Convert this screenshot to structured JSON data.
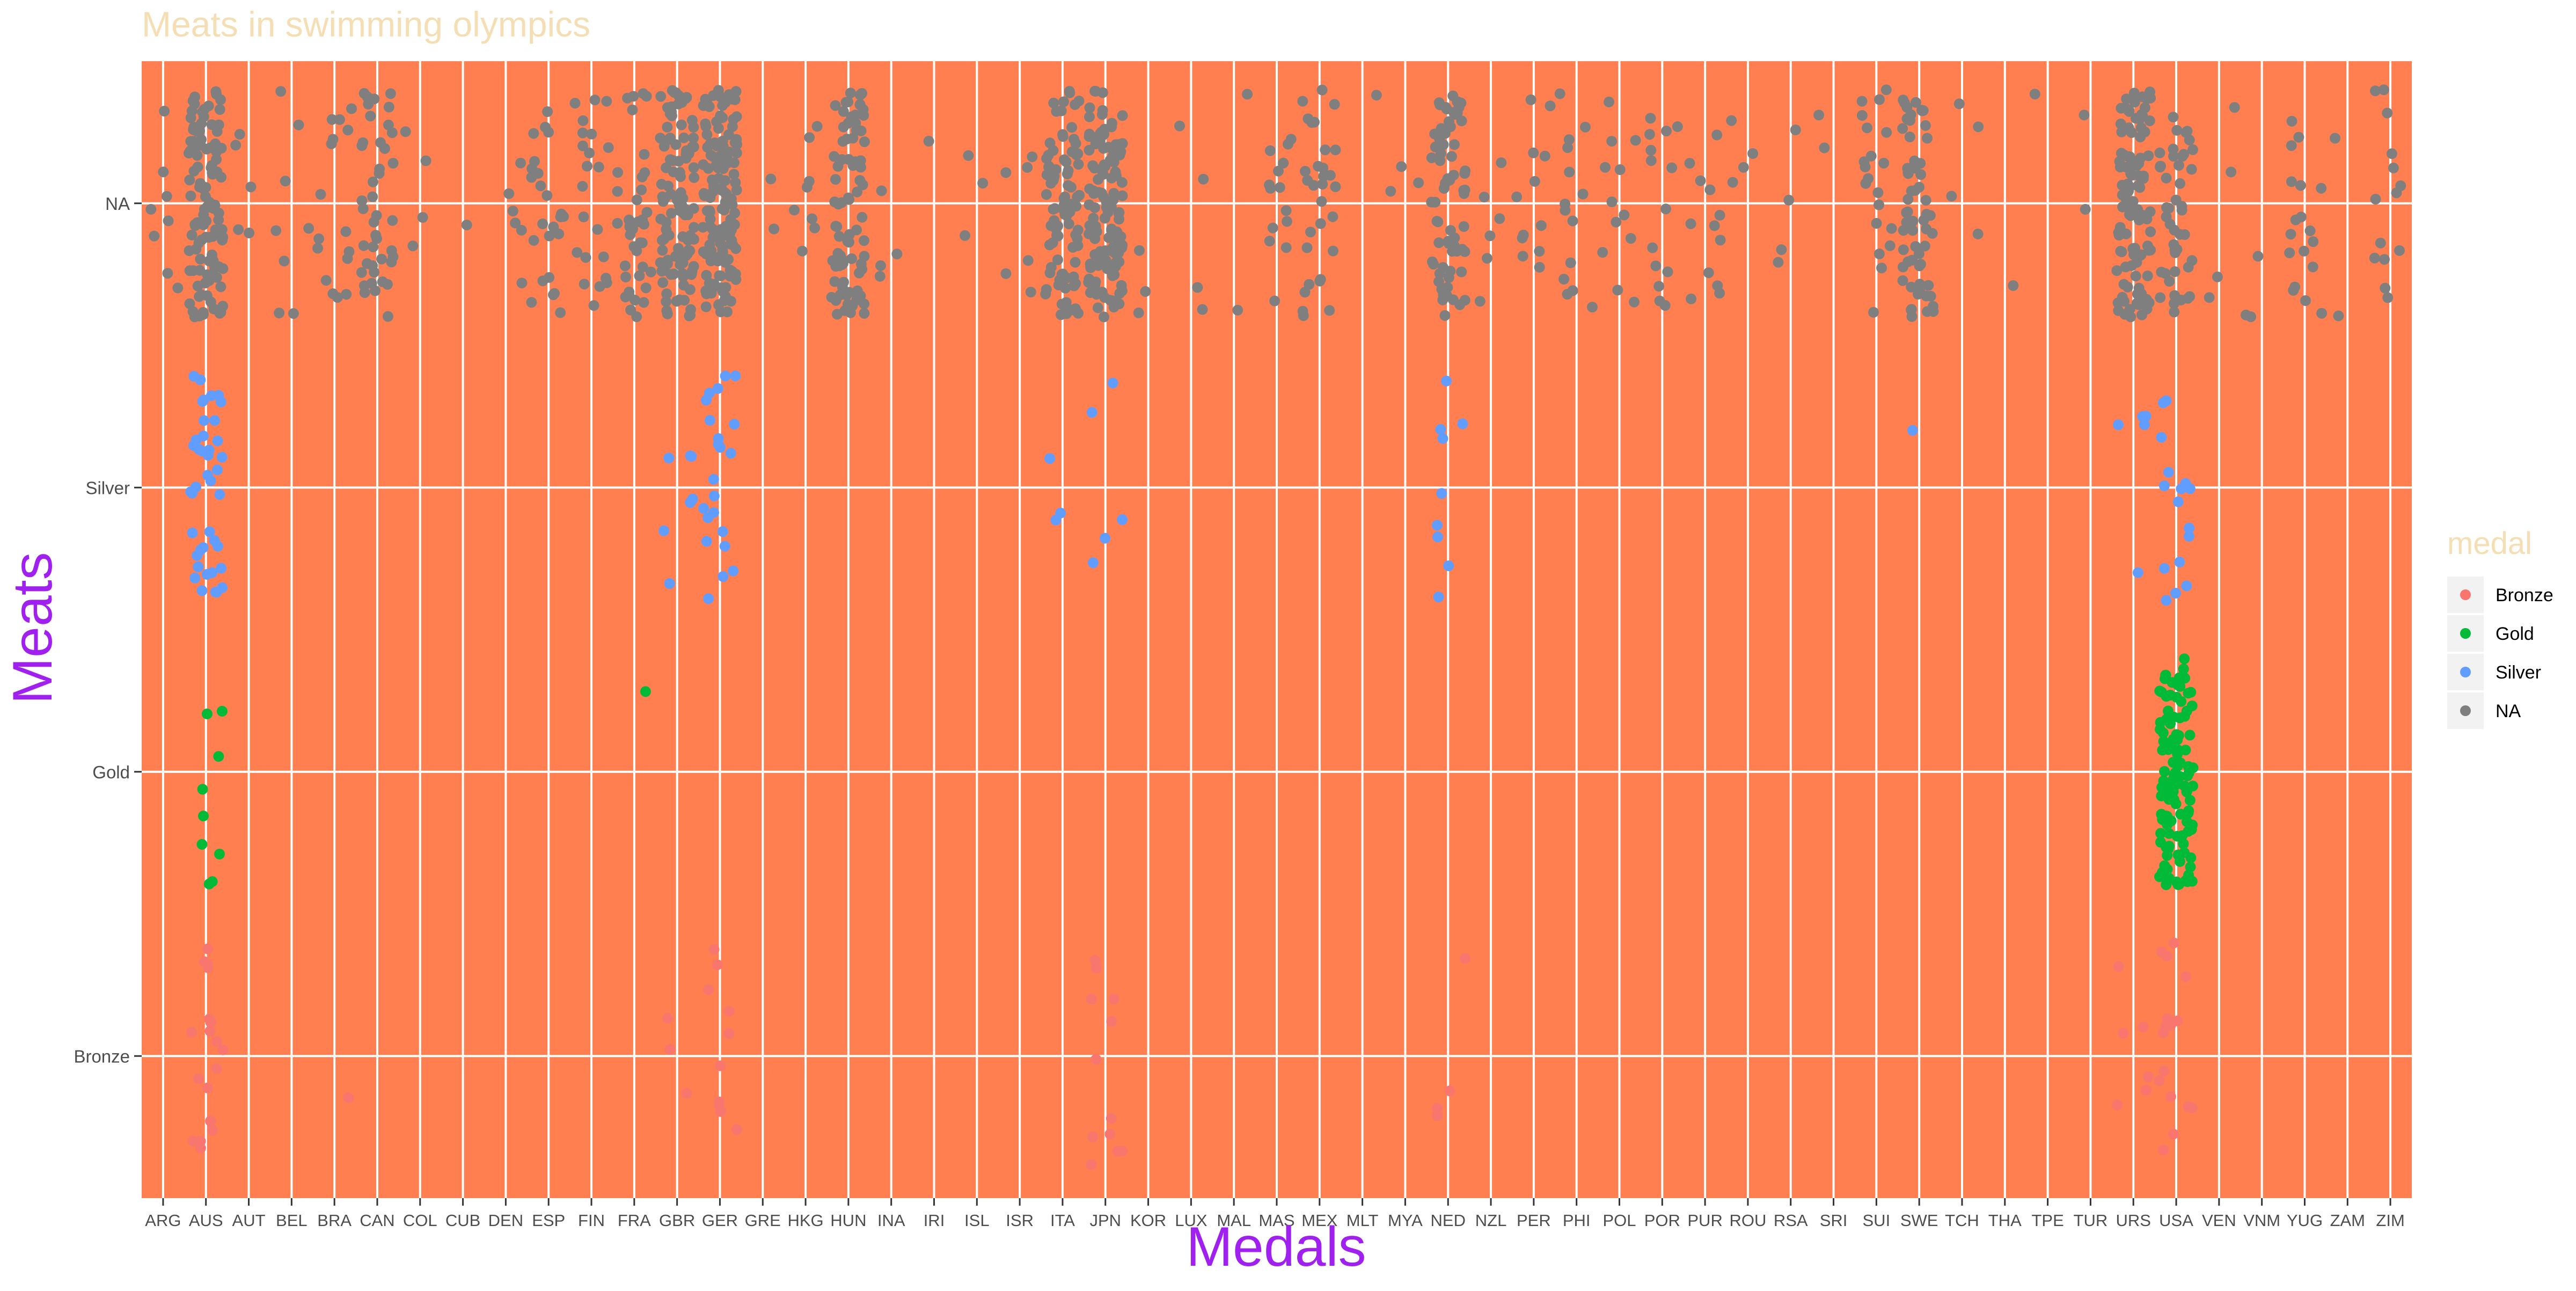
{
  "chart_data": {
    "type": "scatter",
    "title": "Meats in swimming olympics",
    "xlabel": "Medals",
    "ylabel": "Meats",
    "x_categories": [
      "ARG",
      "AUS",
      "AUT",
      "BEL",
      "BRA",
      "CAN",
      "COL",
      "CUB",
      "DEN",
      "ESP",
      "FIN",
      "FRA",
      "GBR",
      "GER",
      "GRE",
      "HKG",
      "HUN",
      "INA",
      "IRI",
      "ISL",
      "ISR",
      "ITA",
      "JPN",
      "KOR",
      "LUX",
      "MAL",
      "MAS",
      "MEX",
      "MLT",
      "MYA",
      "NED",
      "NZL",
      "PER",
      "PHI",
      "POL",
      "POR",
      "PUR",
      "ROU",
      "RSA",
      "SRI",
      "SUI",
      "SWE",
      "TCH",
      "THA",
      "TPE",
      "TUR",
      "URS",
      "USA",
      "VEN",
      "VNM",
      "YUG",
      "ZAM",
      "ZIM"
    ],
    "y_categories": [
      "Bronze",
      "Gold",
      "Silver",
      "NA"
    ],
    "jitter": 0.4,
    "grid": true,
    "legend": {
      "title": "medal",
      "position": "right",
      "entries": [
        {
          "label": "Bronze",
          "color": "#F8766D"
        },
        {
          "label": "Gold",
          "color": "#00BA38"
        },
        {
          "label": "Silver",
          "color": "#619CFF"
        },
        {
          "label": "NA",
          "color": "#7F7F7F"
        }
      ]
    },
    "colors": {
      "panel_background": "#FF7F50",
      "grid_line": "#FFFFFF",
      "title": "#F5DEB3",
      "axis_title": "#A020F0",
      "legend_title": "#F5DEB3",
      "tick_text": "#4D4D4D"
    },
    "point_counts": [
      {
        "country": "ARG",
        "NA": 8
      },
      {
        "country": "AUS",
        "NA": 110,
        "Silver": 42,
        "Gold": 9,
        "Bronze": 18
      },
      {
        "country": "AUT",
        "NA": 5
      },
      {
        "country": "BEL",
        "NA": 8
      },
      {
        "country": "BRA",
        "NA": 16,
        "Bronze": 1
      },
      {
        "country": "CAN",
        "NA": 42
      },
      {
        "country": "COL",
        "NA": 4
      },
      {
        "country": "CUB",
        "NA": 1
      },
      {
        "country": "DEN",
        "NA": 6
      },
      {
        "country": "ESP",
        "NA": 24
      },
      {
        "country": "FIN",
        "NA": 22
      },
      {
        "country": "FRA",
        "NA": 40,
        "Gold": 1
      },
      {
        "country": "GBR",
        "NA": 110,
        "Silver": 7,
        "Bronze": 3
      },
      {
        "country": "GER",
        "NA": 140,
        "Silver": 22,
        "Bronze": 10
      },
      {
        "country": "GRE",
        "NA": 2
      },
      {
        "country": "HKG",
        "NA": 8
      },
      {
        "country": "HUN",
        "NA": 80
      },
      {
        "country": "INA",
        "NA": 4
      },
      {
        "country": "IRI",
        "NA": 1
      },
      {
        "country": "ISL",
        "NA": 3
      },
      {
        "country": "ISR",
        "NA": 6
      },
      {
        "country": "ITA",
        "NA": 90,
        "Silver": 3
      },
      {
        "country": "JPN",
        "NA": 120,
        "Silver": 5,
        "Bronze": 12
      },
      {
        "country": "KOR",
        "NA": 3
      },
      {
        "country": "LUX",
        "NA": 4
      },
      {
        "country": "MAL",
        "NA": 2
      },
      {
        "country": "MAS",
        "NA": 14
      },
      {
        "country": "MEX",
        "NA": 30
      },
      {
        "country": "MLT",
        "NA": 1
      },
      {
        "country": "MYA",
        "NA": 3
      },
      {
        "country": "NED",
        "NA": 70,
        "Silver": 9,
        "Bronze": 4
      },
      {
        "country": "NZL",
        "NA": 6
      },
      {
        "country": "PER",
        "NA": 12
      },
      {
        "country": "PHI",
        "NA": 14
      },
      {
        "country": "POL",
        "NA": 12
      },
      {
        "country": "POR",
        "NA": 14
      },
      {
        "country": "PUR",
        "NA": 12
      },
      {
        "country": "ROU",
        "NA": 4
      },
      {
        "country": "RSA",
        "NA": 4
      },
      {
        "country": "SRI",
        "NA": 2
      },
      {
        "country": "SUI",
        "NA": 20
      },
      {
        "country": "SWE",
        "NA": 60,
        "Silver": 1
      },
      {
        "country": "TCH",
        "NA": 4
      },
      {
        "country": "THA",
        "NA": 1
      },
      {
        "country": "TPE",
        "NA": 1
      },
      {
        "country": "TUR",
        "NA": 2
      },
      {
        "country": "URS",
        "NA": 110,
        "Silver": 5,
        "Bronze": 6
      },
      {
        "country": "USA",
        "NA": 45,
        "Silver": 16,
        "Gold": 120,
        "Bronze": 16
      },
      {
        "country": "VEN",
        "NA": 4
      },
      {
        "country": "VNM",
        "NA": 3
      },
      {
        "country": "YUG",
        "NA": 18
      },
      {
        "country": "ZAM",
        "NA": 2
      },
      {
        "country": "ZIM",
        "NA": 14
      }
    ]
  }
}
